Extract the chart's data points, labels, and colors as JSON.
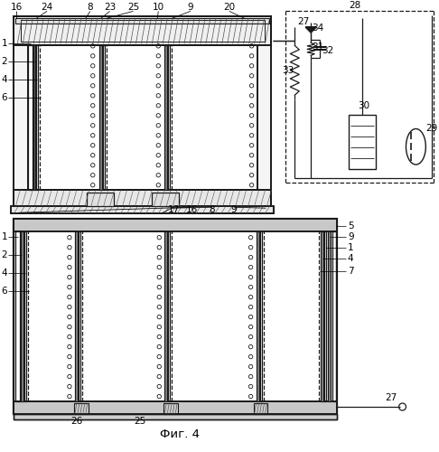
{
  "title": "Фиг. 4",
  "bg_color": "#ffffff",
  "line_color": "#1a1a1a",
  "fig_width": 4.86,
  "fig_height": 5.0,
  "dpi": 100
}
